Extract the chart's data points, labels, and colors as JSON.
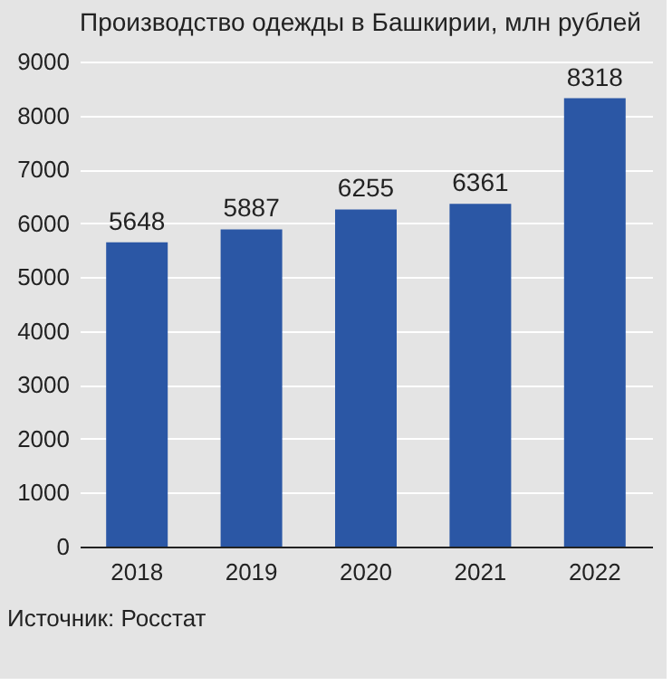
{
  "chart_data": {
    "type": "bar",
    "title": "Производство одежды в Башкирии, млн рублей",
    "categories": [
      "2018",
      "2019",
      "2020",
      "2021",
      "2022"
    ],
    "values": [
      5648,
      5887,
      6255,
      6361,
      8318
    ],
    "color": "#2b57a5",
    "ylim": [
      0,
      9000
    ],
    "yticks": [
      0,
      1000,
      2000,
      3000,
      4000,
      5000,
      6000,
      7000,
      8000,
      9000
    ],
    "grid": "y",
    "data_labels": true,
    "annotations": [
      "Источник: Росстат"
    ]
  }
}
